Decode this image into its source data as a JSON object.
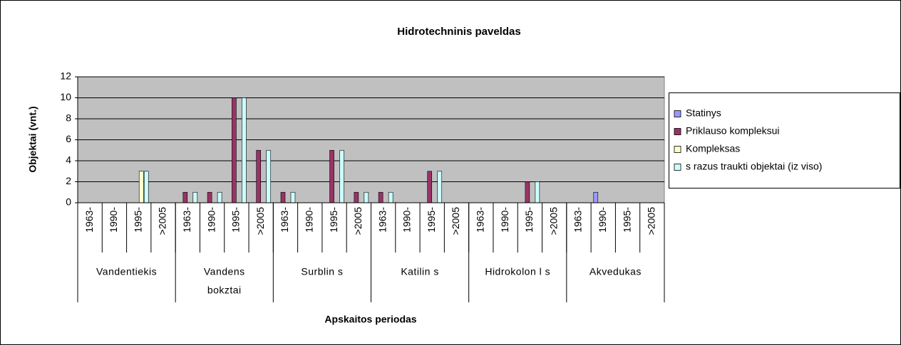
{
  "chart_data": {
    "type": "bar",
    "title": "Hidrotechninis paveldas",
    "y_label": "Objektai (vnt.)",
    "x_label": "Apskaitos periodas",
    "categories": [
      "1963-",
      "1990-",
      "1995-",
      ">2005",
      "1963-",
      "1990-",
      "1995-",
      ">2005",
      "1963-",
      "1990-",
      "1995-",
      ">2005",
      "1963-",
      "1990-",
      "1995-",
      ">2005",
      "1963-",
      "1990-",
      "1995-",
      ">2005",
      "1963-",
      "1990-",
      "1995-",
      ">2005"
    ],
    "groups": [
      [
        "Vandentiekis"
      ],
      [
        "Vandens",
        "bokztai"
      ],
      [
        "Surblin s"
      ],
      [
        "Katilin s"
      ],
      [
        "Hidrokolon l s"
      ],
      [
        "Akvedukas"
      ]
    ],
    "series": [
      {
        "name": "Statinys",
        "color": "#9999ff",
        "values": [
          null,
          null,
          null,
          null,
          null,
          null,
          null,
          null,
          null,
          null,
          null,
          null,
          null,
          null,
          null,
          null,
          null,
          null,
          null,
          null,
          null,
          1,
          null,
          null
        ]
      },
      {
        "name": "Priklauso kompleksui",
        "color": "#993366",
        "values": [
          null,
          null,
          null,
          null,
          1,
          1,
          10,
          5,
          1,
          null,
          5,
          1,
          1,
          null,
          3,
          null,
          null,
          null,
          2,
          null,
          null,
          null,
          null,
          null
        ]
      },
      {
        "name": "Kompleksas",
        "color": "#ffffcc",
        "values": [
          null,
          null,
          3,
          null,
          null,
          null,
          null,
          null,
          null,
          null,
          null,
          null,
          null,
          null,
          null,
          null,
          null,
          null,
          null,
          null,
          null,
          null,
          null,
          null
        ]
      },
      {
        "name": "s razus traukti objektai (iz viso)",
        "color": "#ccffff",
        "values": [
          null,
          null,
          3,
          null,
          1,
          1,
          10,
          5,
          1,
          null,
          5,
          1,
          1,
          null,
          3,
          null,
          null,
          null,
          2,
          null,
          null,
          null,
          null,
          null
        ]
      }
    ],
    "ylim": [
      0,
      12
    ],
    "yticks": [
      0,
      2,
      4,
      6,
      8,
      10,
      12
    ],
    "grid": true,
    "legend": "right"
  }
}
